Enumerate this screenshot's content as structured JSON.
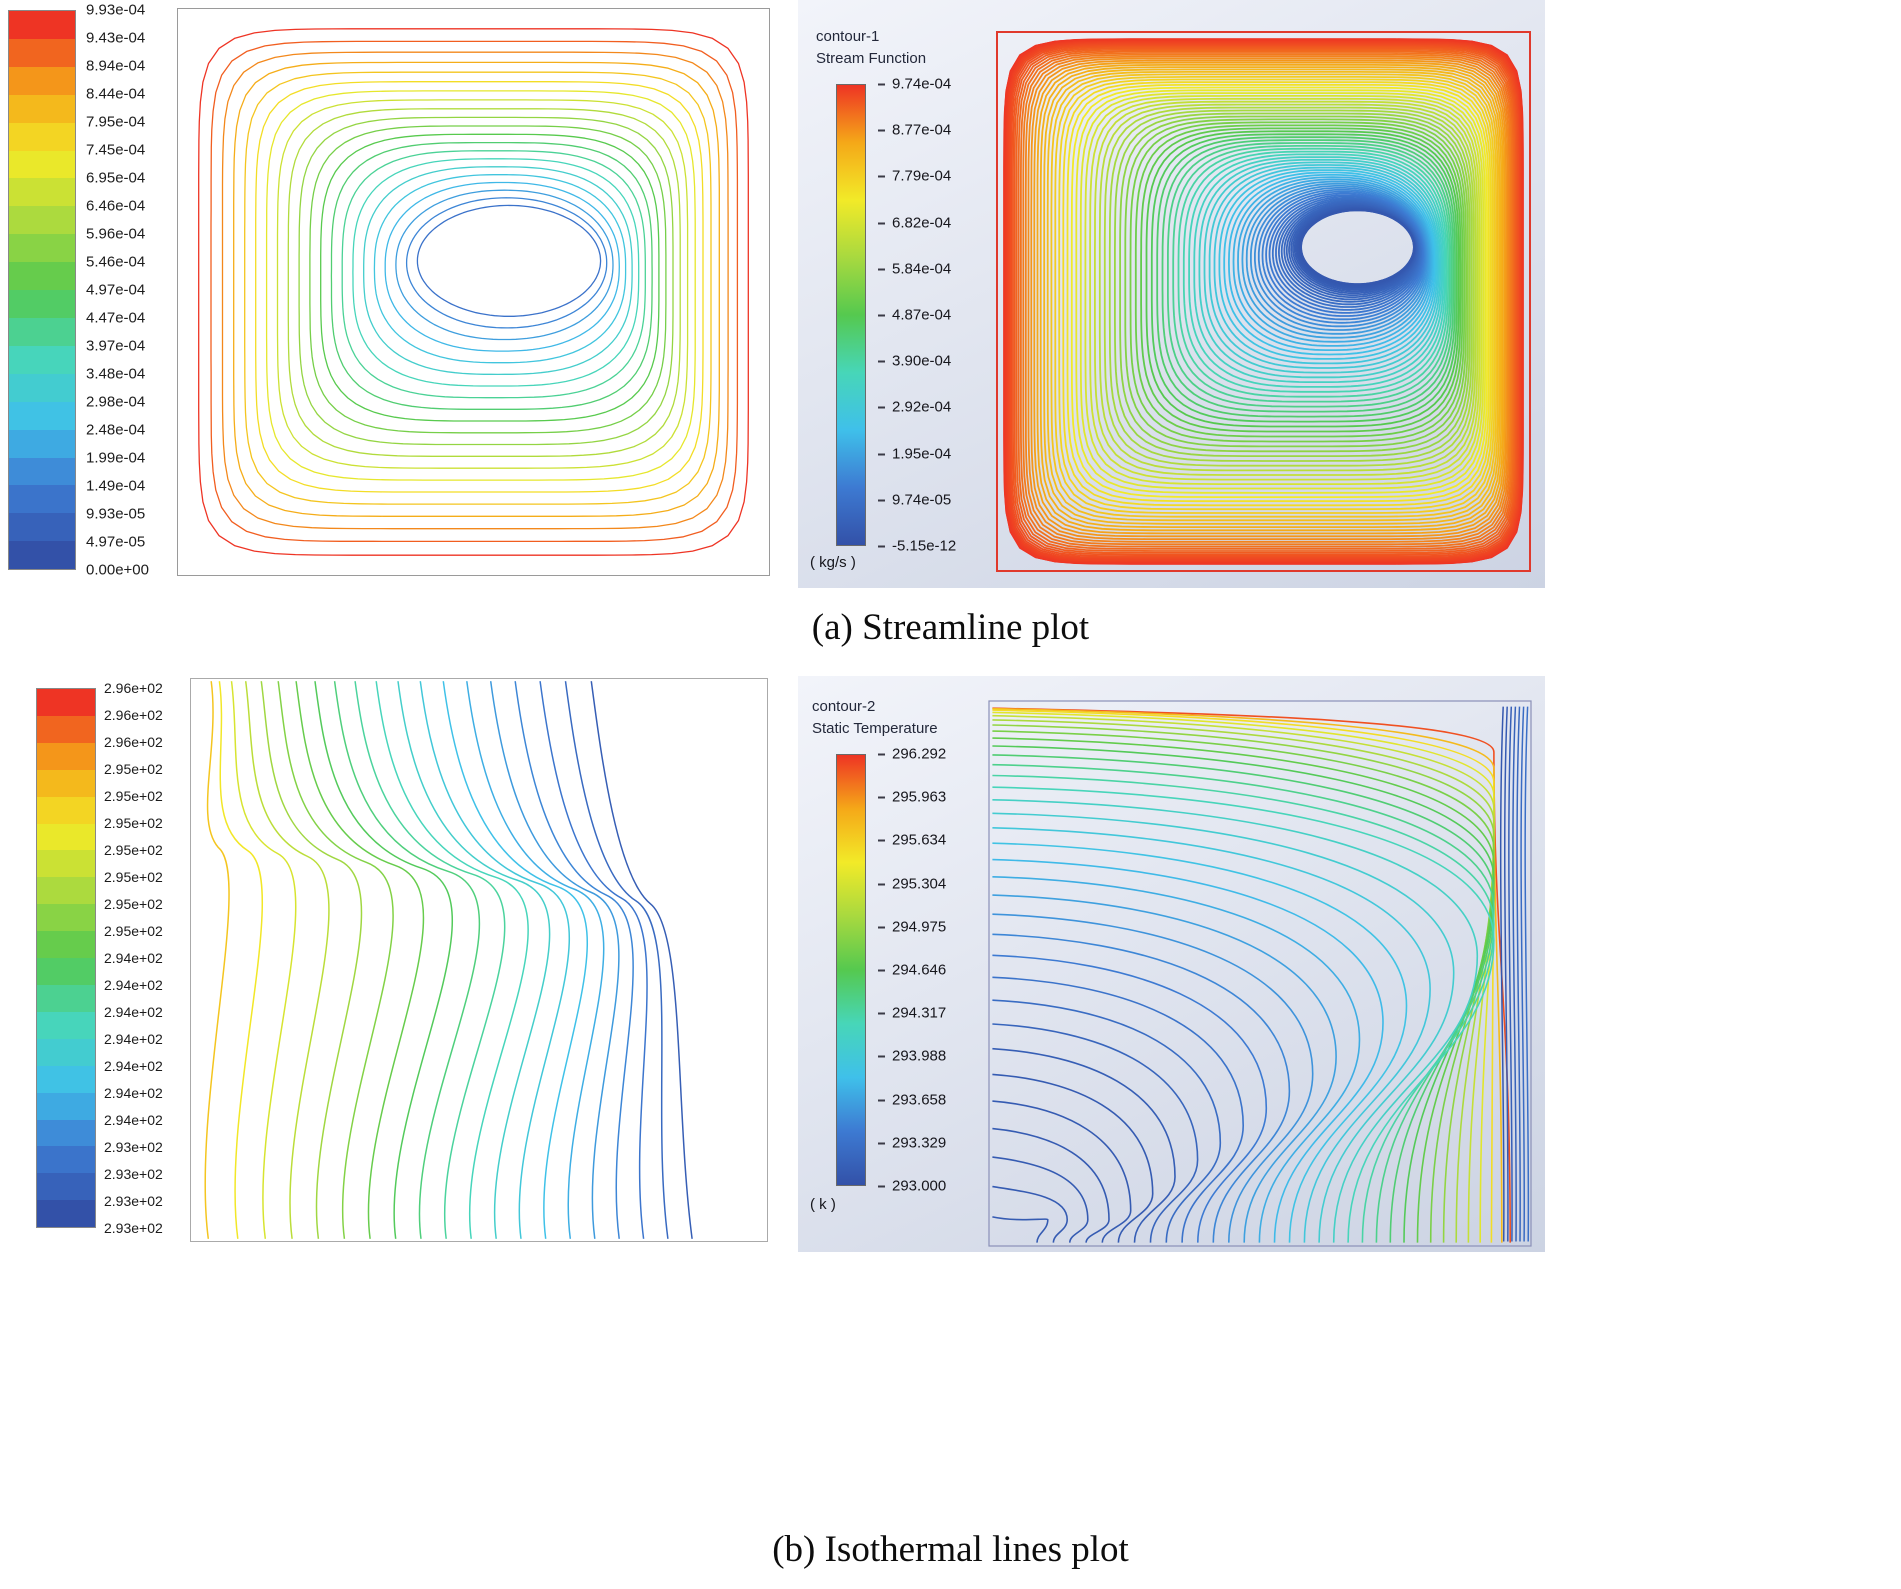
{
  "panel_a": {
    "caption": "(a) Streamline plot",
    "fluent_legend": {
      "title_line1": "contour-1",
      "title_line2": "Stream Function",
      "unit": "( kg/s )"
    }
  },
  "panel_b": {
    "caption": "(b) Isothermal lines plot",
    "fluent_legend": {
      "title_line1": "contour-2",
      "title_line2": "Static Temperature",
      "unit": "( k )"
    }
  },
  "colors": {
    "colormap_stops": [
      "#3351a8",
      "#3d7ad2",
      "#3fc0ea",
      "#47d6b8",
      "#55c94f",
      "#a8d93f",
      "#f2ea28",
      "#f5a818",
      "#ee3424"
    ],
    "plot2_frame": "#e0392c",
    "plot4_frame": "#8a90b8",
    "fluent_panel_bg_top": "#f2f4fa",
    "fluent_panel_bg_bottom": "#ccd3e3",
    "label_text": "#1c1c1c"
  },
  "chart_data": [
    {
      "type": "heatmap",
      "subtype": "line-contour",
      "panel": "a",
      "variable": "Stream Function",
      "units": "kg/s",
      "value_min": "0.00e+00",
      "value_max": "9.93e-04",
      "legend_position": "left",
      "levels": [
        "9.93e-04",
        "9.43e-04",
        "8.94e-04",
        "8.44e-04",
        "7.95e-04",
        "7.45e-04",
        "6.95e-04",
        "6.46e-04",
        "5.96e-04",
        "5.46e-04",
        "4.97e-04",
        "4.47e-04",
        "3.97e-04",
        "3.48e-04",
        "2.98e-04",
        "2.48e-04",
        "1.99e-04",
        "1.49e-04",
        "9.93e-05",
        "4.97e-05",
        "0.00e+00"
      ],
      "description": "Nested closed streamline contours in a square cavity: red/brown outermost line near the walls grading through olive, yellow, green and cyan to blue rings around a white oval vortex core located right of and slightly above the cavity center."
    },
    {
      "type": "heatmap",
      "subtype": "line-contour",
      "panel": "a",
      "title": "contour-1",
      "variable": "Stream Function",
      "units": "kg/s",
      "value_min": "-5.15e-12",
      "value_max": "9.74e-04",
      "legend_position": "left",
      "levels": [
        "9.74e-04",
        "8.77e-04",
        "7.79e-04",
        "6.82e-04",
        "5.84e-04",
        "4.87e-04",
        "3.90e-04",
        "2.92e-04",
        "1.95e-04",
        "9.74e-05",
        "-5.15e-12"
      ],
      "description": "ANSYS-Fluent style dense streamline contour of the same cavity on a light blue-grey background with a red square frame: thick red/orange band at the walls, yellow then green band inward, large cyan-blue region with dense blue spiral lines converging to a vortex core right of center."
    },
    {
      "type": "heatmap",
      "subtype": "line-contour",
      "panel": "b",
      "variable": "Static Temperature",
      "units": "K",
      "value_min": "2.93e+02",
      "value_max": "2.96e+02",
      "legend_position": "left",
      "levels": [
        "2.96e+02",
        "2.96e+02",
        "2.96e+02",
        "2.95e+02",
        "2.95e+02",
        "2.95e+02",
        "2.95e+02",
        "2.95e+02",
        "2.95e+02",
        "2.95e+02",
        "2.94e+02",
        "2.94e+02",
        "2.94e+02",
        "2.94e+02",
        "2.94e+02",
        "2.94e+02",
        "2.94e+02",
        "2.93e+02",
        "2.93e+02",
        "2.93e+02",
        "2.93e+02"
      ],
      "description": "Isothermal lines in the cavity: S-shaped isotherms running from the top edge to the bottom edge, packed near the hot left wall (yellow-green lines) and spreading toward the cold right side (cyan then blue lines)."
    },
    {
      "type": "heatmap",
      "subtype": "line-contour",
      "panel": "b",
      "title": "contour-2",
      "variable": "Static Temperature",
      "units": "k",
      "value_min": "293.000",
      "value_max": "296.292",
      "legend_position": "left",
      "levels": [
        "296.292",
        "295.963",
        "295.634",
        "295.304",
        "294.975",
        "294.646",
        "294.317",
        "293.988",
        "293.658",
        "293.329",
        "293.000"
      ],
      "description": "ANSYS-Fluent style isothermal line plot: red/orange isotherms packed along the hot top-left, a green bundle sweeping right, cyan curves in the core diving to the bottom, and a tight vertical blue bundle along the cold right wall."
    }
  ]
}
